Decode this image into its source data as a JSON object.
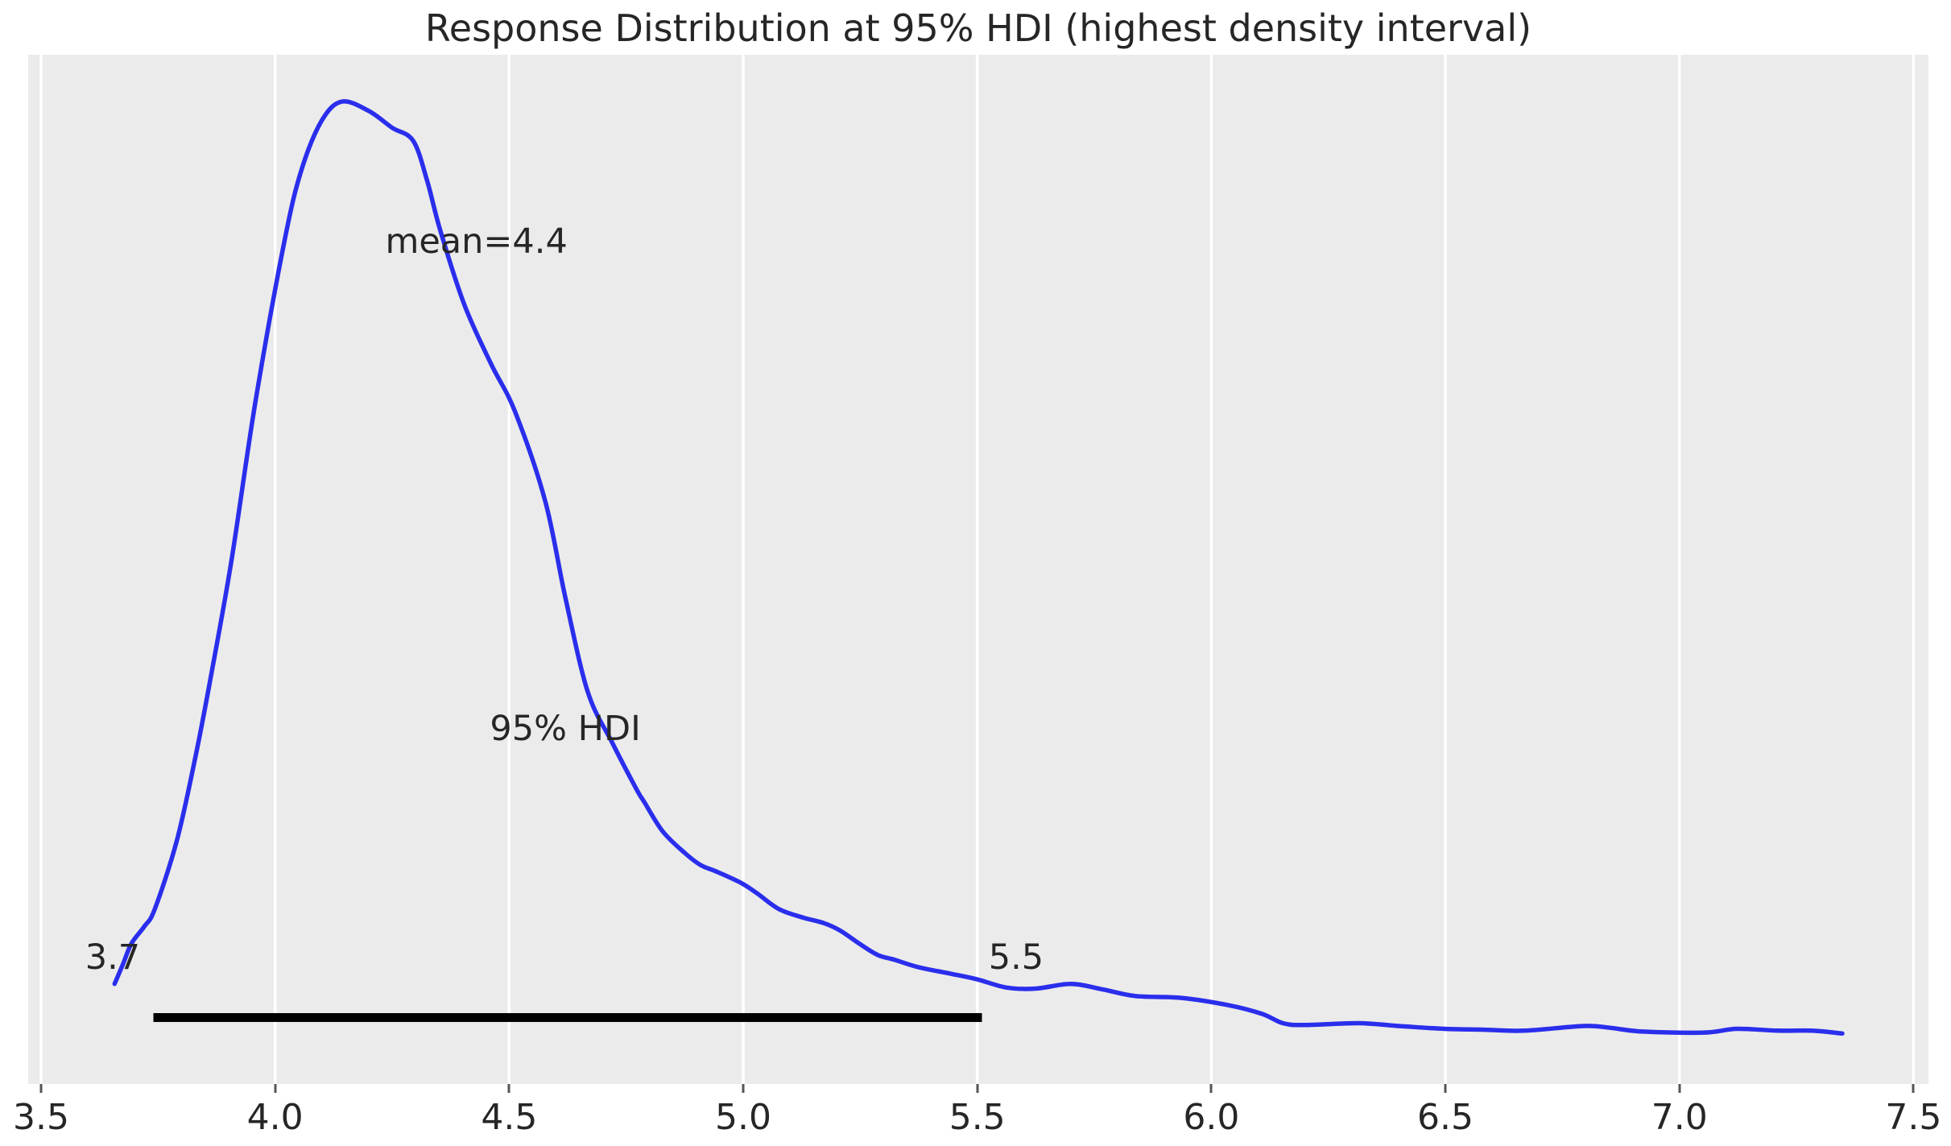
{
  "chart_data": {
    "type": "line",
    "subtype": "posterior-kde",
    "title": "Response Distribution at 95% HDI (highest density interval)",
    "xlabel": "",
    "ylabel": "",
    "xlim": [
      3.4725,
      7.532
    ],
    "ylim_norm": [
      -0.05,
      1.05
    ],
    "grid": "vertical-white-gridlines",
    "legend": "none",
    "x_ticks": [
      3.5,
      4.0,
      4.5,
      5.0,
      5.5,
      6.0,
      6.5,
      7.0,
      7.5
    ],
    "x_tick_labels": [
      "3.5",
      "4.0",
      "4.5",
      "5.0",
      "5.5",
      "6.0",
      "6.5",
      "7.0",
      "7.5"
    ],
    "series": [
      {
        "name": "posterior density (normalized, peak = 1)",
        "points": [
          [
            3.657,
            0.057
          ],
          [
            3.675,
            0.078
          ],
          [
            3.693,
            0.1
          ],
          [
            3.72,
            0.118
          ],
          [
            3.743,
            0.137
          ],
          [
            3.79,
            0.21
          ],
          [
            3.83,
            0.3
          ],
          [
            3.86,
            0.378
          ],
          [
            3.906,
            0.507
          ],
          [
            3.958,
            0.679
          ],
          [
            4.02,
            0.851
          ],
          [
            4.057,
            0.928
          ],
          [
            4.1,
            0.98
          ],
          [
            4.143,
            1.0
          ],
          [
            4.2,
            0.99
          ],
          [
            4.25,
            0.972
          ],
          [
            4.295,
            0.958
          ],
          [
            4.325,
            0.915
          ],
          [
            4.353,
            0.862
          ],
          [
            4.405,
            0.782
          ],
          [
            4.462,
            0.719
          ],
          [
            4.513,
            0.668
          ],
          [
            4.577,
            0.573
          ],
          [
            4.62,
            0.47
          ],
          [
            4.668,
            0.369
          ],
          [
            4.72,
            0.315
          ],
          [
            4.771,
            0.266
          ],
          [
            4.789,
            0.251
          ],
          [
            4.828,
            0.22
          ],
          [
            4.875,
            0.197
          ],
          [
            4.909,
            0.184
          ],
          [
            4.943,
            0.177
          ],
          [
            4.995,
            0.165
          ],
          [
            5.029,
            0.154
          ],
          [
            5.076,
            0.137
          ],
          [
            5.127,
            0.128
          ],
          [
            5.172,
            0.122
          ],
          [
            5.207,
            0.114
          ],
          [
            5.248,
            0.1
          ],
          [
            5.287,
            0.088
          ],
          [
            5.322,
            0.083
          ],
          [
            5.373,
            0.075
          ],
          [
            5.442,
            0.068
          ],
          [
            5.499,
            0.062
          ],
          [
            5.563,
            0.053
          ],
          [
            5.626,
            0.052
          ],
          [
            5.7,
            0.057
          ],
          [
            5.769,
            0.051
          ],
          [
            5.838,
            0.044
          ],
          [
            5.936,
            0.042
          ],
          [
            6.039,
            0.034
          ],
          [
            6.108,
            0.025
          ],
          [
            6.153,
            0.015
          ],
          [
            6.199,
            0.013
          ],
          [
            6.314,
            0.015
          ],
          [
            6.4,
            0.012
          ],
          [
            6.497,
            0.009
          ],
          [
            6.583,
            0.008
          ],
          [
            6.669,
            0.007
          ],
          [
            6.796,
            0.012
          ],
          [
            6.853,
            0.01
          ],
          [
            6.922,
            0.006
          ],
          [
            7.054,
            0.005
          ],
          [
            7.123,
            0.009
          ],
          [
            7.21,
            0.007
          ],
          [
            7.283,
            0.007
          ],
          [
            7.348,
            0.004
          ]
        ]
      }
    ],
    "hdi": {
      "probability": "95%",
      "lower": 3.74,
      "upper": 5.51,
      "bar_y_norm": 0.021,
      "label_lower": "3.7",
      "label_upper": "5.5"
    },
    "mean": 4.4,
    "annotations": {
      "mean": {
        "text": "mean=4.4",
        "x": 4.43,
        "y": 0.85
      },
      "hdi_label": {
        "text": "95% HDI",
        "x": 4.62,
        "y": 0.33
      },
      "hdi_lower": {
        "text": "3.7",
        "x": 3.653,
        "y": 0.085
      },
      "hdi_upper": {
        "text": "5.5",
        "x": 5.583,
        "y": 0.085
      }
    },
    "colors": {
      "curve": "#2a2eec",
      "hdi_bar": "#000000",
      "plot_bg": "#ebebeb",
      "gridline": "#ffffff",
      "text": "#262626",
      "tick": "#555555",
      "page_bg": "#ffffff"
    }
  }
}
